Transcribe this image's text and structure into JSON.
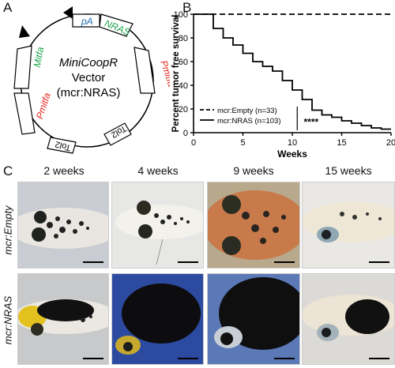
{
  "panels": {
    "a": "A",
    "b": "B",
    "c": "C"
  },
  "vector": {
    "title_line1": "MiniCoopR",
    "title_line2": "Vector",
    "title_line3": "(mcr:NRAS)",
    "labels": {
      "pA": "pA",
      "nras": "NRAS",
      "pmitfa_right": "Pmitfa",
      "mitfa": "Mitfa",
      "pmitfa_left": "Pmitfa",
      "tol2_a": "Tol2",
      "tol2_b": "Tol2"
    },
    "colors": {
      "pA": "#1f6fb5",
      "nras": "#1aa34a",
      "pmitfa": "#e3231b",
      "mitfa": "#1aa34a"
    }
  },
  "chart_data": {
    "type": "line",
    "title": "",
    "xlabel": "Weeks",
    "ylabel": "Percent tumor free survival",
    "xlim": [
      0,
      20
    ],
    "ylim": [
      0,
      100
    ],
    "xticks": [
      0,
      5,
      10,
      15,
      20
    ],
    "yticks": [
      0,
      20,
      40,
      60,
      80,
      100
    ],
    "legend_position": "bottom-left",
    "annotation": "****",
    "series": [
      {
        "name": "mcr:Empty (n=33)",
        "style": "dashed",
        "step": true,
        "x": [
          0,
          20
        ],
        "y": [
          100,
          100
        ]
      },
      {
        "name": "mcr:NRAS (n=103)",
        "style": "solid",
        "step": true,
        "x": [
          0,
          2,
          3,
          4,
          5,
          6,
          7,
          8,
          9,
          10,
          11,
          12,
          13,
          14,
          15,
          16,
          17,
          18,
          19,
          20
        ],
        "y": [
          100,
          88,
          80,
          74,
          67,
          60,
          56,
          52,
          44,
          36,
          28,
          19,
          15,
          13,
          10,
          8,
          6,
          4,
          3,
          3
        ]
      }
    ]
  },
  "photos": {
    "columns": [
      "2 weeks",
      "4 weeks",
      "9 weeks",
      "15 weeks"
    ],
    "rows": [
      "mcr:Empty",
      "mcr:NRAS"
    ]
  }
}
